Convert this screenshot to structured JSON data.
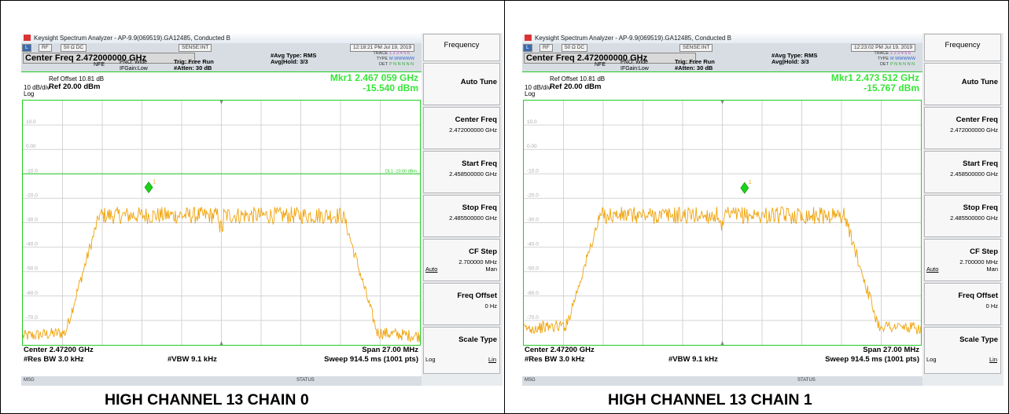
{
  "panels": [
    {
      "title_bar": "Keysight Spectrum Analyzer - AP-9.9(069519).GA12485, Conducted B",
      "mode_bar": {
        "L": "L",
        "RF": "RF",
        "ohm": "50 Ω  DC",
        "sense": "SENSE:INT",
        "time": "12:18:21 PM Jul 19, 2019"
      },
      "center_freq_box": "Center Freq 2.472000000 GHz",
      "nfe": "NFE",
      "pno": "PNO: Wide",
      "ifgain": "IFGain:Low",
      "trig": "Trig: Free Run",
      "atten": "#Atten: 30 dB",
      "avg_type": "#Avg Type: RMS",
      "avg_hold": "Avg|Hold: 3/3",
      "trace_labels": {
        "trace": "TRACE",
        "type": "TYPE",
        "det": "DET",
        "trace_vals": "1 2 3 4 5 6",
        "type_vals": "M WWWWW",
        "det_vals": "P N N N N N"
      },
      "ref_offset": "Ref Offset 10.81 dB",
      "ref_level": "Ref 20.00 dBm",
      "scale_div": "10 dB/div",
      "scale_type_lbl": "Log",
      "marker_line1": "Mkr1 2.467 059 GHz",
      "marker_line2": "-15.540 dBm",
      "marker_label": "1",
      "display_line_label": "DL1 -10.00 dBm",
      "y_ticks": [
        "10.0",
        "0.00",
        "-10.0",
        "-20.0",
        "-30.0",
        "-40.0",
        "-50.0",
        "-60.0",
        "-70.0"
      ],
      "center_label": "Center 2.47200 GHz",
      "rbw_label": "#Res BW 3.0 kHz",
      "vbw_label": "#VBW 9.1 kHz",
      "span_label": "Span 27.00 MHz",
      "sweep_label": "Sweep  914.5 ms (1001 pts)",
      "status_msg": "MSG",
      "status_lbl": "STATUS",
      "caption": "HIGH CHANNEL 13 CHAIN 0"
    },
    {
      "title_bar": "Keysight Spectrum Analyzer - AP-9.9(069519).GA12485, Conducted B",
      "mode_bar": {
        "L": "L",
        "RF": "RF",
        "ohm": "50 Ω  DC",
        "sense": "SENSE:INT",
        "time": "12:23:02 PM Jul 19, 2019"
      },
      "center_freq_box": "Center Freq 2.472000000 GHz",
      "nfe": "NFE",
      "pno": "PNO: Wide",
      "ifgain": "IFGain:Low",
      "trig": "Trig: Free Run",
      "atten": "#Atten: 30 dB",
      "avg_type": "#Avg Type: RMS",
      "avg_hold": "Avg|Hold: 3/3",
      "trace_labels": {
        "trace": "TRACE",
        "type": "TYPE",
        "det": "DET",
        "trace_vals": "1 2 3 4 5 6",
        "type_vals": "M WWWWW",
        "det_vals": "P N N N N N"
      },
      "ref_offset": "Ref Offset 10.81 dB",
      "ref_level": "Ref 20.00 dBm",
      "scale_div": "10 dB/div",
      "scale_type_lbl": "Log",
      "marker_line1": "Mkr1 2.473 512 GHz",
      "marker_line2": "-15.767 dBm",
      "marker_label": "1",
      "display_line_label": "DL1 -10.00 dBm",
      "y_ticks": [
        "10.0",
        "0.00",
        "-10.0",
        "-20.0",
        "-30.0",
        "-40.0",
        "-50.0",
        "-60.0",
        "-70.0"
      ],
      "center_label": "Center 2.47200 GHz",
      "rbw_label": "#Res BW 3.0 kHz",
      "vbw_label": "#VBW 9.1 kHz",
      "span_label": "Span 27.00 MHz",
      "sweep_label": "Sweep  914.5 ms (1001 pts)",
      "status_msg": "MSG",
      "status_lbl": "STATUS",
      "caption": "HIGH CHANNEL 13 CHAIN 1"
    }
  ],
  "softkeys": {
    "menu_title": "Frequency",
    "auto_tune": "Auto Tune",
    "center_freq": "Center Freq",
    "center_freq_val": "2.472000000 GHz",
    "start_freq": "Start Freq",
    "start_freq_val": "2.458500000 GHz",
    "stop_freq": "Stop Freq",
    "stop_freq_val": "2.485500000 GHz",
    "cf_step": "CF Step",
    "cf_step_val": "2.700000 MHz",
    "cf_auto": "Auto",
    "cf_man": "Man",
    "freq_offset": "Freq Offset",
    "freq_offset_val": "0 Hz",
    "scale_type": "Scale Type",
    "scale_log": "Log",
    "scale_lin": "Lin"
  },
  "colors": {
    "trace": "#f0a30a",
    "marker": "#19d219",
    "graticule": "#22cc22",
    "readout": "#37e537"
  },
  "chart_data": [
    {
      "type": "line",
      "x_range_ghz": [
        2.4585,
        2.4855
      ],
      "y_range_dbm": [
        -80,
        20
      ],
      "marker": {
        "x_ghz": 2.467059,
        "y_dbm": -15.54
      },
      "display_line_dbm": -10.0,
      "plateau_dbm": -27,
      "floor_dbm": -75
    },
    {
      "type": "line",
      "x_range_ghz": [
        2.4585,
        2.4855
      ],
      "y_range_dbm": [
        -80,
        20
      ],
      "marker": {
        "x_ghz": 2.473512,
        "y_dbm": -15.767
      },
      "plateau_dbm": -27,
      "floor_dbm": -72
    }
  ]
}
